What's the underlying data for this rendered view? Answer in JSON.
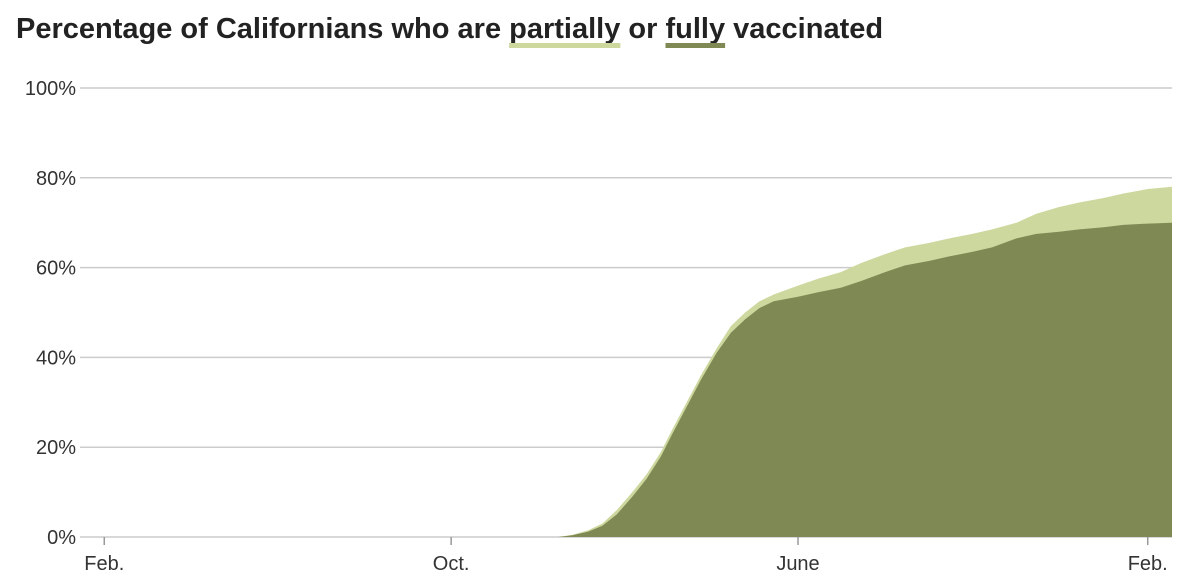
{
  "chart_data": {
    "type": "area",
    "title": {
      "prefix": "Percentage of Californians who are ",
      "series_a_word": "partially",
      "middle": " or ",
      "series_b_word": "fully",
      "suffix": " vaccinated"
    },
    "colors": {
      "partially": "#cdd89f",
      "fully": "#7f8954",
      "grid": "#cccccc",
      "text": "#333333"
    },
    "xlabel": "",
    "ylabel": "",
    "x_range": [
      "2020-01-15",
      "2022-02-18"
    ],
    "ylim": [
      0,
      100
    ],
    "y_ticks": [
      {
        "value": 0,
        "label": "0%"
      },
      {
        "value": 20,
        "label": "20%"
      },
      {
        "value": 40,
        "label": "40%"
      },
      {
        "value": 60,
        "label": "60%"
      },
      {
        "value": 80,
        "label": "80%"
      },
      {
        "value": 100,
        "label": "100%"
      }
    ],
    "x_ticks": [
      {
        "date": "2020-02-01",
        "label": "Feb."
      },
      {
        "date": "2020-10-01",
        "label": "Oct."
      },
      {
        "date": "2021-06-01",
        "label": "June"
      },
      {
        "date": "2022-02-01",
        "label": "Feb."
      }
    ],
    "series": [
      {
        "name": "partially",
        "points": [
          [
            "2020-12-15",
            0
          ],
          [
            "2020-12-25",
            0.5
          ],
          [
            "2021-01-05",
            1.5
          ],
          [
            "2021-01-15",
            3
          ],
          [
            "2021-01-25",
            6
          ],
          [
            "2021-02-05",
            10
          ],
          [
            "2021-02-15",
            14
          ],
          [
            "2021-02-25",
            19
          ],
          [
            "2021-03-05",
            24
          ],
          [
            "2021-03-15",
            30
          ],
          [
            "2021-03-25",
            36
          ],
          [
            "2021-04-05",
            42
          ],
          [
            "2021-04-15",
            47
          ],
          [
            "2021-04-25",
            50
          ],
          [
            "2021-05-05",
            52.5
          ],
          [
            "2021-05-15",
            54
          ],
          [
            "2021-06-01",
            56
          ],
          [
            "2021-06-15",
            57.5
          ],
          [
            "2021-07-01",
            59
          ],
          [
            "2021-07-15",
            61
          ],
          [
            "2021-08-01",
            63
          ],
          [
            "2021-08-15",
            64.5
          ],
          [
            "2021-09-01",
            65.5
          ],
          [
            "2021-09-15",
            66.5
          ],
          [
            "2021-10-01",
            67.5
          ],
          [
            "2021-10-15",
            68.5
          ],
          [
            "2021-11-01",
            70
          ],
          [
            "2021-11-15",
            72
          ],
          [
            "2021-12-01",
            73.5
          ],
          [
            "2021-12-15",
            74.5
          ],
          [
            "2022-01-01",
            75.5
          ],
          [
            "2022-01-15",
            76.5
          ],
          [
            "2022-02-01",
            77.5
          ],
          [
            "2022-02-18",
            78
          ]
        ]
      },
      {
        "name": "fully",
        "points": [
          [
            "2020-12-15",
            0
          ],
          [
            "2020-12-25",
            0.4
          ],
          [
            "2021-01-05",
            1.2
          ],
          [
            "2021-01-15",
            2.5
          ],
          [
            "2021-01-25",
            5
          ],
          [
            "2021-02-05",
            9
          ],
          [
            "2021-02-15",
            13
          ],
          [
            "2021-02-25",
            18
          ],
          [
            "2021-03-05",
            23
          ],
          [
            "2021-03-15",
            29
          ],
          [
            "2021-03-25",
            35
          ],
          [
            "2021-04-05",
            41
          ],
          [
            "2021-04-15",
            45.5
          ],
          [
            "2021-04-25",
            48.5
          ],
          [
            "2021-05-05",
            51
          ],
          [
            "2021-05-15",
            52.5
          ],
          [
            "2021-06-01",
            53.5
          ],
          [
            "2021-06-15",
            54.5
          ],
          [
            "2021-07-01",
            55.5
          ],
          [
            "2021-07-15",
            57
          ],
          [
            "2021-08-01",
            59
          ],
          [
            "2021-08-15",
            60.5
          ],
          [
            "2021-09-01",
            61.5
          ],
          [
            "2021-09-15",
            62.5
          ],
          [
            "2021-10-01",
            63.5
          ],
          [
            "2021-10-15",
            64.5
          ],
          [
            "2021-11-01",
            66.5
          ],
          [
            "2021-11-15",
            67.5
          ],
          [
            "2021-12-01",
            68
          ],
          [
            "2021-12-15",
            68.5
          ],
          [
            "2022-01-01",
            69
          ],
          [
            "2022-01-15",
            69.5
          ],
          [
            "2022-02-01",
            69.8
          ],
          [
            "2022-02-18",
            70
          ]
        ]
      }
    ],
    "grid": true,
    "legend": "inline in title (underlined words)"
  }
}
